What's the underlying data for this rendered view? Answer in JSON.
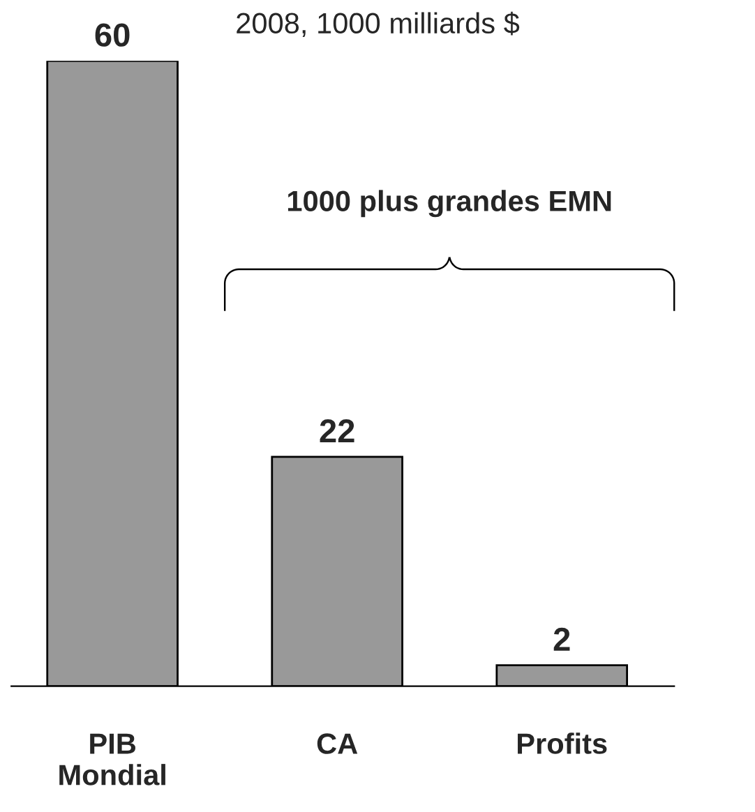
{
  "chart_data": {
    "type": "bar",
    "title": "2008, 1000 milliards $",
    "categories": [
      "PIB\nMondial",
      "CA",
      "Profits"
    ],
    "values": [
      60,
      22,
      2
    ],
    "color": "#999999",
    "data_labels": true,
    "grid": false,
    "legend": false,
    "annotations": [
      "1000 plus grandes EMN"
    ]
  }
}
